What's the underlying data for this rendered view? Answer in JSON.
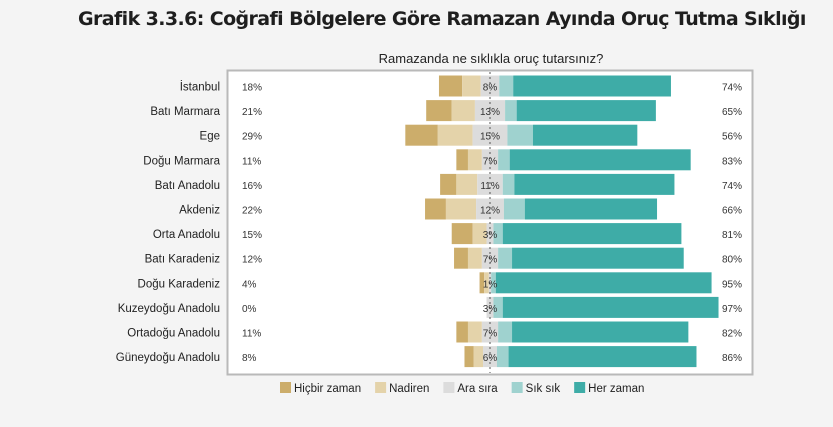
{
  "page": {
    "title": "Grafik 3.3.6: Coğrafi Bölgelere Göre Ramazan Ayında Oruç Tutma Sıklığı"
  },
  "chart_data": {
    "type": "diverging-stacked-bar",
    "title": "Ramazanda ne sıklıkla oruç tutarsınız?",
    "unit": "%",
    "categories": [
      "İstanbul",
      "Batı Marmara",
      "Ege",
      "Doğu Marmara",
      "Batı Anadolu",
      "Akdeniz",
      "Orta Anadolu",
      "Batı Karadeniz",
      "Doğu Karadeniz",
      "Kuzeydoğu Anadolu",
      "Ortadoğu Anadolu",
      "Güneydoğu Anadolu"
    ],
    "series": [
      {
        "name": "Hiçbir zaman",
        "color": "#ccad6b",
        "values": [
          10,
          11,
          14,
          5,
          7,
          9,
          9,
          6,
          2,
          0,
          5,
          4
        ]
      },
      {
        "name": "Nadiren",
        "color": "#e4d3aa",
        "values": [
          8,
          10,
          15,
          6,
          9,
          13,
          6,
          6,
          2,
          0,
          6,
          4
        ]
      },
      {
        "name": "Ara sıra",
        "color": "#dcdcdc",
        "values": [
          8,
          13,
          15,
          7,
          11,
          12,
          3,
          7,
          1,
          3,
          7,
          6
        ]
      },
      {
        "name": "Sık sık",
        "color": "#9fd2cf",
        "values": [
          6,
          5,
          11,
          5,
          5,
          9,
          4,
          6,
          2,
          4,
          6,
          5
        ]
      },
      {
        "name": "Her zaman",
        "color": "#3eaca7",
        "values": [
          68,
          60,
          45,
          78,
          69,
          57,
          77,
          74,
          93,
          93,
          76,
          81
        ]
      }
    ],
    "left_totals": [
      "18%",
      "21%",
      "29%",
      "11%",
      "16%",
      "22%",
      "15%",
      "12%",
      "4%",
      "0%",
      "11%",
      "8%"
    ],
    "middle_labels": [
      "8%",
      "13%",
      "15%",
      "7%",
      "11%",
      "12%",
      "3%",
      "7%",
      "1%",
      "3%",
      "7%",
      "6%"
    ],
    "right_totals": [
      "74%",
      "65%",
      "56%",
      "83%",
      "74%",
      "66%",
      "81%",
      "80%",
      "95%",
      "97%",
      "82%",
      "86%"
    ],
    "legend_position": "bottom"
  }
}
